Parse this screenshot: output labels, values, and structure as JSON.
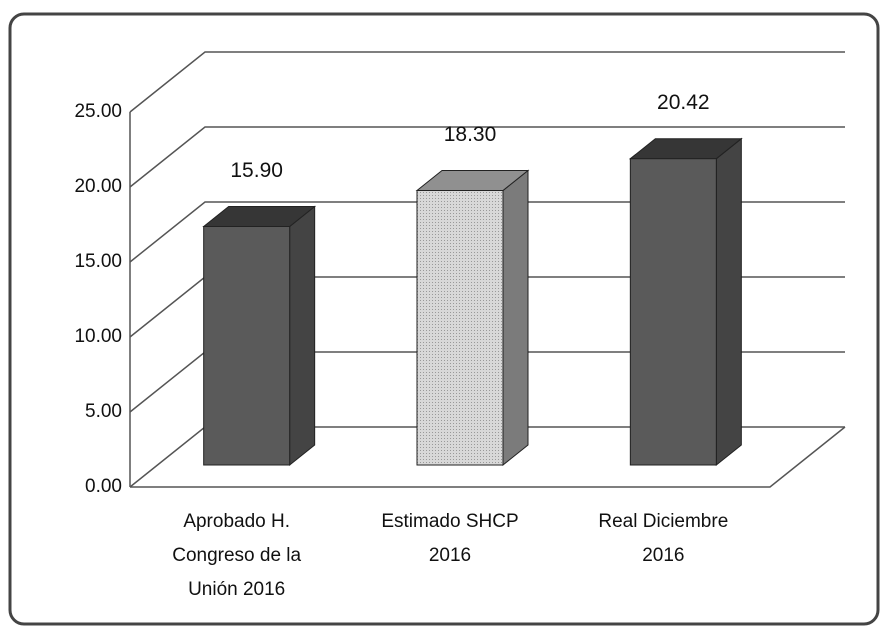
{
  "chart_data": {
    "type": "bar3d",
    "categories": [
      "Aprobado H. Congreso de la Unión 2016",
      "Estimado SHCP 2016",
      "Real Diciembre 2016"
    ],
    "values": [
      15.9,
      18.3,
      20.42
    ],
    "value_labels": [
      "15.90",
      "18.30",
      "20.42"
    ],
    "colors": [
      "#5a5a5a",
      "#cdcdcd",
      "#5a5a5a"
    ],
    "ylim": [
      0,
      25
    ],
    "yticks": [
      {
        "value": 0,
        "label": "0.00"
      },
      {
        "value": 5,
        "label": "5.00"
      },
      {
        "value": 10,
        "label": "10.00"
      },
      {
        "value": 15,
        "label": "15.00"
      },
      {
        "value": 20,
        "label": "20.00"
      },
      {
        "value": 25,
        "label": "25.00"
      }
    ],
    "grid": true
  }
}
